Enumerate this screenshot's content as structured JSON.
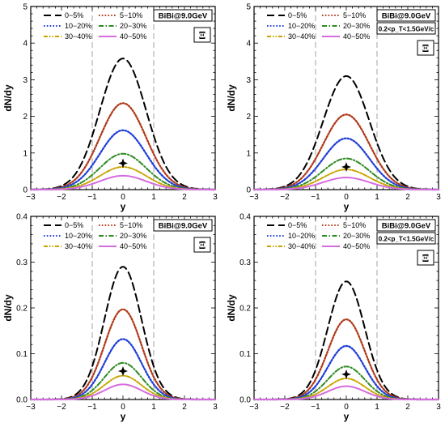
{
  "chart_data": [
    {
      "type": "line",
      "panel": "top-left",
      "xlabel": "y",
      "ylabel": "dN/dy",
      "xlim": [
        -3,
        3
      ],
      "ylim": [
        0,
        5
      ],
      "xticks": [
        "−3",
        "−2",
        "−1",
        "0",
        "1",
        "2",
        "3"
      ],
      "yticks": [
        "0",
        "1",
        "2",
        "3",
        "4",
        "5"
      ],
      "info_box": [
        "BiBi@9.0GeV"
      ],
      "particle_label": "Ξ",
      "data_point": {
        "x": 0,
        "y": 0.72
      },
      "dashed_vlines": [
        -1,
        1
      ],
      "gaussian_sigma": 0.75,
      "legend": [
        "0−5%",
        "5−10%",
        "10−20%",
        "20−30%",
        "30−40%",
        "40−50%"
      ],
      "series": [
        {
          "name": "0−5%",
          "peak": 3.58,
          "color": "#000000",
          "style": "dash"
        },
        {
          "name": "5−10%",
          "peak": 2.36,
          "color": "#b03a1a",
          "style": "dot"
        },
        {
          "name": "10−20%",
          "peak": 1.62,
          "color": "#1f3fd8",
          "style": "dot"
        },
        {
          "name": "20−30%",
          "peak": 0.98,
          "color": "#2e8b22",
          "style": "dashdot"
        },
        {
          "name": "30−40%",
          "peak": 0.62,
          "color": "#c9a400",
          "style": "dashdotdot"
        },
        {
          "name": "40−50%",
          "peak": 0.38,
          "color": "#d66be0",
          "style": "solid"
        }
      ]
    },
    {
      "type": "line",
      "panel": "top-right",
      "xlabel": "y",
      "ylabel": "dN/dy",
      "xlim": [
        -3,
        3
      ],
      "ylim": [
        0,
        5
      ],
      "xticks": [
        "−3",
        "−2",
        "−1",
        "0",
        "1",
        "2",
        "3"
      ],
      "yticks": [
        "0",
        "1",
        "2",
        "3",
        "4",
        "5"
      ],
      "info_box": [
        "BiBi@9.0GeV",
        "0.2<p_T<1.5GeV/c"
      ],
      "particle_label": "Ξ",
      "data_point": {
        "x": 0,
        "y": 0.62
      },
      "dashed_vlines": [
        -1,
        1
      ],
      "gaussian_sigma": 0.75,
      "legend": [
        "0−5%",
        "5−10%",
        "10−20%",
        "20−30%",
        "30−40%",
        "40−50%"
      ],
      "series": [
        {
          "name": "0−5%",
          "peak": 3.1,
          "color": "#000000",
          "style": "dash"
        },
        {
          "name": "5−10%",
          "peak": 2.05,
          "color": "#b03a1a",
          "style": "dot"
        },
        {
          "name": "10−20%",
          "peak": 1.4,
          "color": "#1f3fd8",
          "style": "dot"
        },
        {
          "name": "20−30%",
          "peak": 0.85,
          "color": "#2e8b22",
          "style": "dashdot"
        },
        {
          "name": "30−40%",
          "peak": 0.55,
          "color": "#c9a400",
          "style": "dashdotdot"
        },
        {
          "name": "40−50%",
          "peak": 0.33,
          "color": "#d66be0",
          "style": "solid"
        }
      ]
    },
    {
      "type": "line",
      "panel": "bottom-left",
      "xlabel": "y",
      "ylabel": "dN/dy",
      "xlim": [
        -3,
        3
      ],
      "ylim": [
        0,
        0.4
      ],
      "xticks": [
        "−3",
        "−2",
        "−1",
        "0",
        "1",
        "2",
        "3"
      ],
      "yticks": [
        "0.0",
        "0.1",
        "0.2",
        "0.3",
        "0.4"
      ],
      "info_box": [
        "BiBi@9.0GeV"
      ],
      "particle_label": "Ξ̄",
      "data_point": {
        "x": 0,
        "y": 0.062
      },
      "dashed_vlines": [
        -1,
        1
      ],
      "gaussian_sigma": 0.6,
      "legend": [
        "0−5%",
        "5−10%",
        "10−20%",
        "20−30%",
        "30−40%",
        "40−50%"
      ],
      "series": [
        {
          "name": "0−5%",
          "peak": 0.29,
          "color": "#000000",
          "style": "dash"
        },
        {
          "name": "5−10%",
          "peak": 0.197,
          "color": "#b03a1a",
          "style": "dot"
        },
        {
          "name": "10−20%",
          "peak": 0.132,
          "color": "#1f3fd8",
          "style": "dot"
        },
        {
          "name": "20−30%",
          "peak": 0.08,
          "color": "#2e8b22",
          "style": "dashdot"
        },
        {
          "name": "30−40%",
          "peak": 0.052,
          "color": "#c9a400",
          "style": "dashdotdot"
        },
        {
          "name": "40−50%",
          "peak": 0.033,
          "color": "#d66be0",
          "style": "solid"
        }
      ]
    },
    {
      "type": "line",
      "panel": "bottom-right",
      "xlabel": "y",
      "ylabel": "dN/dy",
      "xlim": [
        -3,
        3
      ],
      "ylim": [
        0,
        0.4
      ],
      "xticks": [
        "−3",
        "−2",
        "−1",
        "0",
        "1",
        "2",
        "3"
      ],
      "yticks": [
        "0.0",
        "0.1",
        "0.2",
        "0.3",
        "0.4"
      ],
      "info_box": [
        "BiBi@9.0GeV",
        "0.2<p_T<1.5GeV/c"
      ],
      "particle_label": "Ξ̄",
      "data_point": {
        "x": 0,
        "y": 0.055
      },
      "dashed_vlines": [
        -1,
        1
      ],
      "gaussian_sigma": 0.6,
      "legend": [
        "0−5%",
        "5−10%",
        "10−20%",
        "20−30%",
        "30−40%",
        "40−50%"
      ],
      "series": [
        {
          "name": "0−5%",
          "peak": 0.258,
          "color": "#000000",
          "style": "dash"
        },
        {
          "name": "5−10%",
          "peak": 0.175,
          "color": "#b03a1a",
          "style": "dot"
        },
        {
          "name": "10−20%",
          "peak": 0.117,
          "color": "#1f3fd8",
          "style": "dot"
        },
        {
          "name": "20−30%",
          "peak": 0.072,
          "color": "#2e8b22",
          "style": "dashdot"
        },
        {
          "name": "30−40%",
          "peak": 0.046,
          "color": "#c9a400",
          "style": "dashdotdot"
        },
        {
          "name": "40−50%",
          "peak": 0.029,
          "color": "#d66be0",
          "style": "solid"
        }
      ]
    }
  ]
}
